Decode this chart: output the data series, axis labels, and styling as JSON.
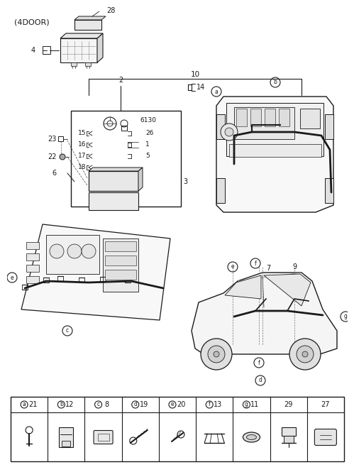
{
  "bg_color": "#ffffff",
  "line_color": "#1a1a1a",
  "gray_color": "#888888",
  "light_gray": "#cccccc",
  "title": "(4DOOR)",
  "labels": {
    "4": "4",
    "28": "28",
    "10": "10",
    "2": "2",
    "14": "14",
    "a": "a",
    "b": "b",
    "15": "15",
    "16": "16",
    "17": "17",
    "18": "18",
    "26": "26",
    "1": "1",
    "5": "5",
    "23": "23",
    "22": "22",
    "6": "6",
    "3": "3",
    "6130": "6130",
    "e": "e",
    "c": "c",
    "f": "f",
    "g": "g",
    "d": "d",
    "7": "7",
    "9": "9"
  },
  "footer_items": [
    {
      "letter": "a",
      "number": "21"
    },
    {
      "letter": "b",
      "number": "12"
    },
    {
      "letter": "c",
      "number": "8"
    },
    {
      "letter": "d",
      "number": "19"
    },
    {
      "letter": "e",
      "number": "20"
    },
    {
      "letter": "f",
      "number": "13"
    },
    {
      "letter": "g",
      "number": "11"
    },
    {
      "letter": "",
      "number": "29"
    },
    {
      "letter": "",
      "number": "27"
    }
  ]
}
